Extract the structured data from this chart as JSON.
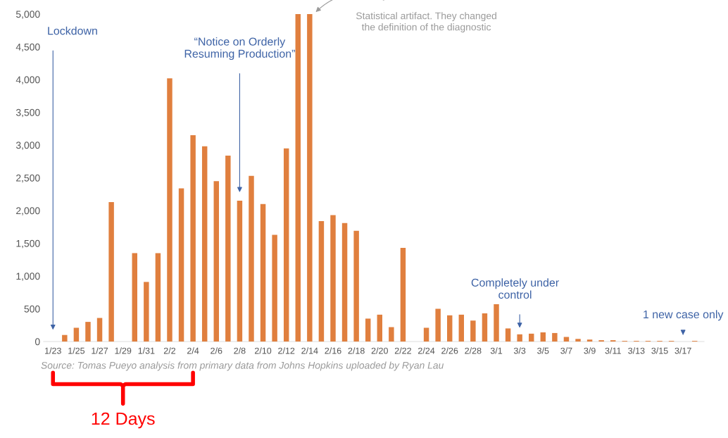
{
  "chart_data": {
    "type": "bar",
    "categories": [
      "1/23",
      null,
      "1/25",
      null,
      "1/27",
      null,
      "1/29",
      null,
      "1/31",
      null,
      "2/2",
      null,
      "2/4",
      null,
      "2/6",
      null,
      "2/8",
      null,
      "2/10",
      null,
      "2/12",
      null,
      "2/14",
      null,
      "2/16",
      null,
      "2/18",
      null,
      "2/20",
      null,
      "2/22",
      null,
      "2/24",
      null,
      "2/26",
      null,
      "2/28",
      null,
      "3/1",
      null,
      "3/3",
      null,
      "3/5",
      null,
      "3/7",
      null,
      "3/9",
      null,
      "3/11",
      null,
      "3/13",
      null,
      "3/15",
      null,
      "3/17",
      null
    ],
    "values": [
      0,
      100,
      210,
      300,
      360,
      2130,
      0,
      1350,
      910,
      1350,
      4020,
      2340,
      3150,
      2980,
      2450,
      2840,
      2150,
      2530,
      2100,
      1630,
      2950,
      5000,
      5000,
      1840,
      1930,
      1810,
      1690,
      350,
      410,
      220,
      1430,
      0,
      210,
      500,
      400,
      410,
      320,
      430,
      570,
      200,
      110,
      120,
      140,
      130,
      70,
      40,
      30,
      20,
      20,
      10,
      10,
      10,
      10,
      10,
      0,
      10
    ],
    "color": "#e07f3e",
    "ylim": [
      0,
      5000
    ],
    "yticks": [
      0,
      500,
      {
        "value": 1000,
        "label": "1,000"
      },
      {
        "value": 1500,
        "label": "1,500"
      },
      {
        "value": 2000,
        "label": "2,000"
      },
      {
        "value": 2500,
        "label": "2,500"
      },
      {
        "value": 3000,
        "label": "3,000"
      },
      {
        "value": 3500,
        "label": "3,500"
      },
      {
        "value": 4000,
        "label": "4,000"
      },
      {
        "value": 4500,
        "label": "4,500"
      },
      {
        "value": 5000,
        "label": "5,000"
      }
    ],
    "grid": false,
    "annotations": [
      "Lockdown",
      "“Notice on Orderly\nResuming Production”",
      "Completely under\ncontrol",
      "1 new case only",
      "Statistical artifact. They changed\nthe definition of the diagnostic",
      "Source: Tomas Pueyo analysis from primary data from Johns Hopkins uploaded by Ryan Lau",
      "12 Days"
    ]
  }
}
